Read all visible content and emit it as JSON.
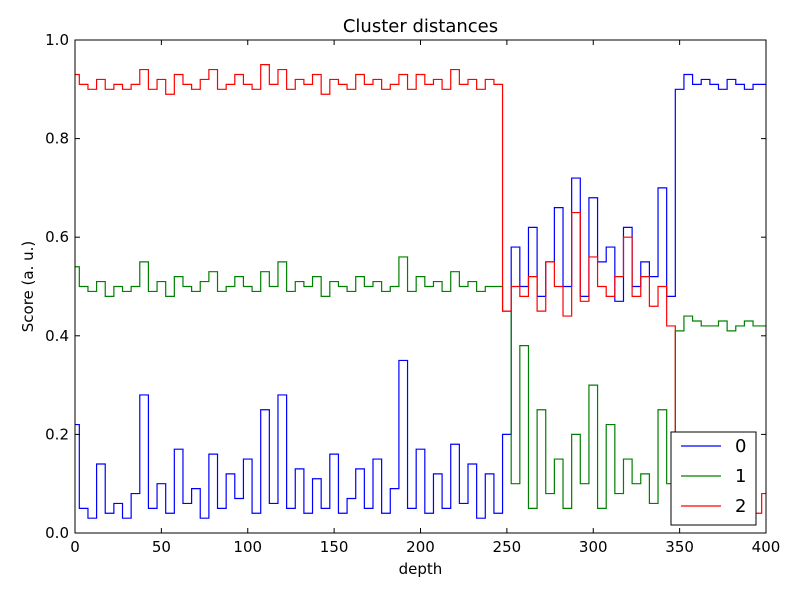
{
  "chart_data": {
    "type": "line",
    "title": "Cluster distances",
    "xlabel": "depth",
    "ylabel": "Score (a. u.)",
    "xlim": [
      0,
      400
    ],
    "ylim": [
      0.0,
      1.0
    ],
    "xticks": [
      0,
      50,
      100,
      150,
      200,
      250,
      300,
      350,
      400
    ],
    "xtick_labels": [
      "0",
      "50",
      "100",
      "150",
      "200",
      "250",
      "300",
      "350",
      "400"
    ],
    "yticks": [
      0.0,
      0.2,
      0.4,
      0.6,
      0.8,
      1.0
    ],
    "ytick_labels": [
      "0.0",
      "0.2",
      "0.4",
      "0.6",
      "0.8",
      "1.0"
    ],
    "grid": false,
    "legend_position": "lower-right",
    "step_style": "steps-mid",
    "x": [
      0,
      5,
      10,
      15,
      20,
      25,
      30,
      35,
      40,
      45,
      50,
      55,
      60,
      65,
      70,
      75,
      80,
      85,
      90,
      95,
      100,
      105,
      110,
      115,
      120,
      125,
      130,
      135,
      140,
      145,
      150,
      155,
      160,
      165,
      170,
      175,
      180,
      185,
      190,
      195,
      200,
      205,
      210,
      215,
      220,
      225,
      230,
      235,
      240,
      245,
      250,
      255,
      260,
      265,
      270,
      275,
      280,
      285,
      290,
      295,
      300,
      305,
      310,
      315,
      320,
      325,
      330,
      335,
      340,
      345,
      350,
      355,
      360,
      365,
      370,
      375,
      380,
      385,
      390,
      395,
      400
    ],
    "series": [
      {
        "name": "0",
        "color": "#0000ff",
        "values": [
          0.22,
          0.05,
          0.03,
          0.14,
          0.04,
          0.06,
          0.03,
          0.08,
          0.28,
          0.05,
          0.1,
          0.04,
          0.17,
          0.06,
          0.09,
          0.03,
          0.16,
          0.05,
          0.12,
          0.07,
          0.15,
          0.04,
          0.25,
          0.06,
          0.28,
          0.05,
          0.13,
          0.04,
          0.11,
          0.05,
          0.16,
          0.04,
          0.07,
          0.13,
          0.05,
          0.15,
          0.04,
          0.09,
          0.35,
          0.05,
          0.17,
          0.04,
          0.12,
          0.05,
          0.18,
          0.06,
          0.14,
          0.03,
          0.12,
          0.04,
          0.2,
          0.58,
          0.5,
          0.62,
          0.48,
          0.55,
          0.66,
          0.5,
          0.72,
          0.48,
          0.68,
          0.55,
          0.58,
          0.47,
          0.62,
          0.5,
          0.55,
          0.52,
          0.7,
          0.48,
          0.9,
          0.93,
          0.91,
          0.92,
          0.91,
          0.9,
          0.92,
          0.91,
          0.9,
          0.91,
          0.91
        ]
      },
      {
        "name": "1",
        "color": "#008000",
        "values": [
          0.54,
          0.5,
          0.49,
          0.51,
          0.48,
          0.5,
          0.49,
          0.5,
          0.55,
          0.49,
          0.51,
          0.48,
          0.52,
          0.5,
          0.49,
          0.51,
          0.53,
          0.49,
          0.5,
          0.52,
          0.5,
          0.49,
          0.53,
          0.5,
          0.55,
          0.49,
          0.51,
          0.5,
          0.52,
          0.48,
          0.51,
          0.5,
          0.49,
          0.52,
          0.5,
          0.51,
          0.49,
          0.5,
          0.56,
          0.49,
          0.52,
          0.5,
          0.51,
          0.49,
          0.53,
          0.5,
          0.51,
          0.49,
          0.5,
          0.5,
          0.45,
          0.1,
          0.38,
          0.05,
          0.25,
          0.08,
          0.15,
          0.05,
          0.2,
          0.1,
          0.3,
          0.05,
          0.22,
          0.08,
          0.15,
          0.1,
          0.12,
          0.06,
          0.25,
          0.1,
          0.41,
          0.44,
          0.43,
          0.42,
          0.42,
          0.43,
          0.41,
          0.42,
          0.43,
          0.42,
          0.42
        ]
      },
      {
        "name": "2",
        "color": "#ff0000",
        "values": [
          0.93,
          0.91,
          0.9,
          0.92,
          0.9,
          0.91,
          0.9,
          0.91,
          0.94,
          0.9,
          0.92,
          0.89,
          0.93,
          0.91,
          0.9,
          0.92,
          0.94,
          0.9,
          0.91,
          0.93,
          0.91,
          0.9,
          0.95,
          0.91,
          0.94,
          0.9,
          0.92,
          0.91,
          0.93,
          0.89,
          0.92,
          0.91,
          0.9,
          0.93,
          0.91,
          0.92,
          0.9,
          0.91,
          0.93,
          0.9,
          0.93,
          0.91,
          0.92,
          0.9,
          0.94,
          0.91,
          0.92,
          0.9,
          0.92,
          0.91,
          0.45,
          0.5,
          0.48,
          0.52,
          0.45,
          0.55,
          0.5,
          0.44,
          0.65,
          0.47,
          0.56,
          0.5,
          0.48,
          0.52,
          0.6,
          0.48,
          0.52,
          0.46,
          0.5,
          0.42,
          0.1,
          0.05,
          0.02,
          0.03,
          0.05,
          0.02,
          0.04,
          0.03,
          0.02,
          0.04,
          0.08
        ]
      }
    ]
  }
}
